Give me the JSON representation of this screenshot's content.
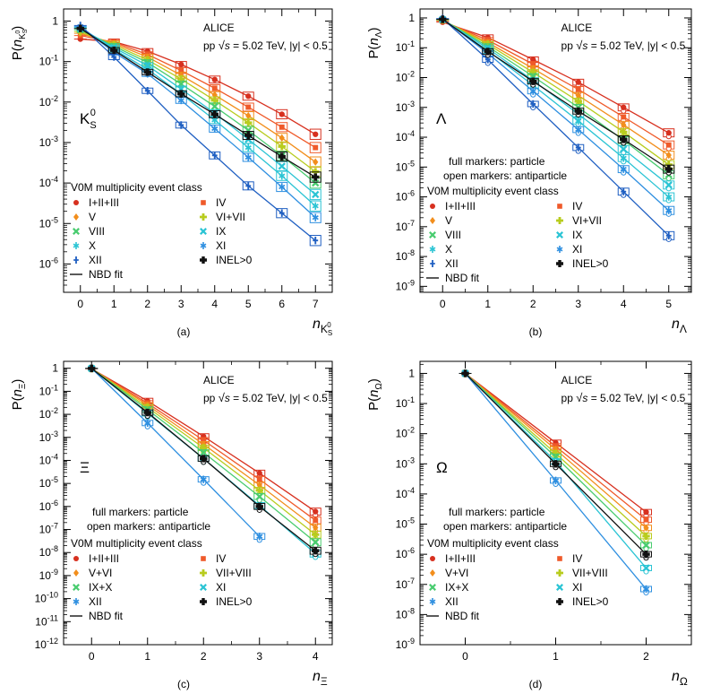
{
  "figure": {
    "colors": {
      "c1": "#d7301f",
      "c2": "#ef5a2a",
      "c3": "#f28e1c",
      "c4": "#b8cc1e",
      "c5": "#49cc6f",
      "c6": "#2bc4d4",
      "c7": "#2e8fe0",
      "c8": "#1f5fc2",
      "c9": "#111111"
    },
    "panels_order": [
      "a",
      "b",
      "c",
      "d"
    ]
  },
  "chart_data": [
    {
      "panel": "a",
      "type": "line",
      "panel_label": "(a)",
      "ylabel_main": "P(",
      "ylabel_sym": "n",
      "ylabel_sub": "K",
      "ylabel_subsub": "S",
      "ylabel_sup": "0",
      "ylabel_close": ")",
      "xlabel_sym": "n",
      "xlabel_sub": "K",
      "xlabel_subsub": "S",
      "xlabel_sup": "0",
      "species": "K",
      "species_sub": "S",
      "species_sup": "0",
      "experiment": "ALICE",
      "energy_prefix": "pp",
      "energy_text": "s = 5.02 TeV, |y| < 0.5",
      "marker_note_1": "",
      "marker_note_2": "",
      "legend_title": "V0M multiplicity event class",
      "xlim": [
        -0.5,
        7.5
      ],
      "x_ticks": [
        0,
        1,
        2,
        3,
        4,
        5,
        6,
        7
      ],
      "x_tick_labels": [
        "0",
        "1",
        "2",
        "3",
        "4",
        "5",
        "6",
        "7"
      ],
      "ylim_exp": [
        -6.7,
        0.3
      ],
      "y_tick_labels": [
        "10^-6",
        "10^-5",
        "10^-4",
        "10^-3",
        "10^-2",
        "10^-1",
        "1"
      ],
      "y_tick_exps": [
        -6,
        -5,
        -4,
        -3,
        -2,
        -1,
        0
      ],
      "fit_label": "NBD fit",
      "series": [
        {
          "name": "I+II+III",
          "marker": "circle",
          "color": "c1",
          "x": [
            0,
            1,
            2,
            3,
            4,
            5,
            6,
            7
          ],
          "y": [
            0.36,
            0.31,
            0.18,
            0.085,
            0.036,
            0.014,
            0.005,
            0.0016
          ]
        },
        {
          "name": "IV",
          "marker": "square",
          "color": "c2",
          "x": [
            0,
            1,
            2,
            3,
            4,
            5,
            6,
            7
          ],
          "y": [
            0.44,
            0.3,
            0.15,
            0.06,
            0.022,
            0.0075,
            0.0024,
            0.00075
          ]
        },
        {
          "name": "V",
          "marker": "diamond",
          "color": "c3",
          "x": [
            0,
            1,
            2,
            3,
            4,
            5,
            6,
            7
          ],
          "y": [
            0.5,
            0.28,
            0.13,
            0.046,
            0.015,
            0.0046,
            0.0013,
            0.00033
          ]
        },
        {
          "name": "VI+VII",
          "marker": "cross",
          "color": "c4",
          "x": [
            0,
            1,
            2,
            3,
            4,
            5,
            6,
            7
          ],
          "y": [
            0.55,
            0.26,
            0.11,
            0.037,
            0.011,
            0.0031,
            0.0008,
            0.00019
          ]
        },
        {
          "name": "VIII",
          "marker": "xcross",
          "color": "c5",
          "x": [
            0,
            1,
            2,
            3,
            4,
            5,
            6,
            7
          ],
          "y": [
            0.61,
            0.24,
            0.095,
            0.028,
            0.0078,
            0.002,
            0.00047,
            0.0001
          ]
        },
        {
          "name": "IX",
          "marker": "xcross",
          "color": "c6",
          "x": [
            0,
            1,
            2,
            3,
            4,
            5,
            6,
            7
          ],
          "y": [
            0.66,
            0.22,
            0.08,
            0.021,
            0.0053,
            0.0012,
            0.00026,
            5.2e-05
          ]
        },
        {
          "name": "X",
          "marker": "star",
          "color": "c6",
          "x": [
            0,
            1,
            2,
            3,
            4,
            5,
            6,
            7
          ],
          "y": [
            0.7,
            0.2,
            0.065,
            0.016,
            0.0036,
            0.00075,
            0.00015,
            2.7e-05
          ]
        },
        {
          "name": "XI",
          "marker": "star",
          "color": "c7",
          "x": [
            0,
            1,
            2,
            3,
            4,
            5,
            6,
            7
          ],
          "y": [
            0.74,
            0.17,
            0.05,
            0.011,
            0.0022,
            0.00043,
            8e-05,
            1.4e-05
          ]
        },
        {
          "name": "XII",
          "marker": "plus",
          "color": "c8",
          "x": [
            0,
            1,
            2,
            3,
            4,
            5,
            6,
            7
          ],
          "y": [
            0.78,
            0.13,
            0.019,
            0.0027,
            0.00048,
            8.5e-05,
            1.8e-05,
            3.8e-06
          ]
        },
        {
          "name": "INEL>0",
          "marker": "thickcross",
          "color": "c9",
          "x": [
            0,
            1,
            2,
            3,
            4,
            5,
            6,
            7
          ],
          "y": [
            0.66,
            0.19,
            0.055,
            0.016,
            0.005,
            0.0015,
            0.00045,
            0.00014
          ]
        }
      ]
    },
    {
      "panel": "b",
      "type": "line",
      "panel_label": "(b)",
      "ylabel_main": "P(",
      "ylabel_sym": "n",
      "ylabel_sub": "Λ",
      "ylabel_subsub": "",
      "ylabel_sup": "",
      "ylabel_close": ")",
      "xlabel_sym": "n",
      "xlabel_sub": "Λ",
      "xlabel_subsub": "",
      "xlabel_sup": "",
      "species": "Λ",
      "species_sub": "",
      "species_sup": "",
      "experiment": "ALICE",
      "energy_prefix": "pp",
      "energy_text": "s = 5.02 TeV, |y| < 0.5",
      "marker_note_1": "full markers: particle",
      "marker_note_2": "open markers: antiparticle",
      "legend_title": "V0M multiplicity event class",
      "xlim": [
        -0.5,
        5.5
      ],
      "x_ticks": [
        0,
        1,
        2,
        3,
        4,
        5
      ],
      "x_tick_labels": [
        "0",
        "1",
        "2",
        "3",
        "4",
        "5"
      ],
      "ylim_exp": [
        -9.2,
        0.3
      ],
      "y_tick_labels": [
        "10^-9",
        "10^-8",
        "10^-7",
        "10^-6",
        "10^-5",
        "10^-4",
        "10^-3",
        "10^-2",
        "10^-1",
        "1"
      ],
      "y_tick_exps": [
        -9,
        -8,
        -7,
        -6,
        -5,
        -4,
        -3,
        -2,
        -1,
        0
      ],
      "fit_label": "NBD fit",
      "series": [
        {
          "name": "I+II+III",
          "marker": "circle",
          "color": "c1",
          "x": [
            0,
            1,
            2,
            3,
            4,
            5
          ],
          "y": [
            0.72,
            0.22,
            0.04,
            0.007,
            0.001,
            0.00014
          ]
        },
        {
          "name": "IV",
          "marker": "square",
          "color": "c2",
          "x": [
            0,
            1,
            2,
            3,
            4,
            5
          ],
          "y": [
            0.78,
            0.18,
            0.028,
            0.004,
            0.00048,
            5.5e-05
          ]
        },
        {
          "name": "V",
          "marker": "diamond",
          "color": "c3",
          "x": [
            0,
            1,
            2,
            3,
            4,
            5
          ],
          "y": [
            0.82,
            0.15,
            0.02,
            0.0025,
            0.00026,
            2.5e-05
          ]
        },
        {
          "name": "VI+VII",
          "marker": "cross",
          "color": "c4",
          "x": [
            0,
            1,
            2,
            3,
            4,
            5
          ],
          "y": [
            0.85,
            0.13,
            0.015,
            0.0016,
            0.00015,
            1.2e-05
          ]
        },
        {
          "name": "VIII",
          "marker": "xcross",
          "color": "c5",
          "x": [
            0,
            1,
            2,
            3,
            4,
            5
          ],
          "y": [
            0.87,
            0.11,
            0.011,
            0.001,
            8e-05,
            5.5e-06
          ]
        },
        {
          "name": "IX",
          "marker": "xcross",
          "color": "c6",
          "x": [
            0,
            1,
            2,
            3,
            4,
            5
          ],
          "y": [
            0.89,
            0.095,
            0.008,
            0.0006,
            4e-05,
            2.5e-06
          ]
        },
        {
          "name": "X",
          "marker": "star",
          "color": "c6",
          "x": [
            0,
            1,
            2,
            3,
            4,
            5
          ],
          "y": [
            0.91,
            0.08,
            0.0055,
            0.00035,
            2e-05,
            1e-06
          ]
        },
        {
          "name": "XI",
          "marker": "star",
          "color": "c7",
          "x": [
            0,
            1,
            2,
            3,
            4,
            5
          ],
          "y": [
            0.93,
            0.065,
            0.0035,
            0.00018,
            8.5e-06,
            3.5e-07
          ]
        },
        {
          "name": "XII",
          "marker": "plus",
          "color": "c8",
          "x": [
            0,
            1,
            2,
            3,
            4,
            5
          ],
          "y": [
            0.95,
            0.04,
            0.0013,
            4.5e-05,
            1.5e-06,
            5e-08
          ]
        },
        {
          "name": "INEL>0",
          "marker": "thickcross",
          "color": "c9",
          "x": [
            0,
            1,
            2,
            3,
            4,
            5
          ],
          "y": [
            0.9,
            0.075,
            0.0075,
            0.00075,
            8.5e-05,
            8.5e-06
          ]
        }
      ]
    },
    {
      "panel": "c",
      "type": "line",
      "panel_label": "(c)",
      "ylabel_main": "P(",
      "ylabel_sym": "n",
      "ylabel_sub": "Ξ",
      "ylabel_subsub": "",
      "ylabel_sup": "",
      "ylabel_close": ")",
      "xlabel_sym": "n",
      "xlabel_sub": "Ξ",
      "xlabel_subsub": "",
      "xlabel_sup": "",
      "species": "Ξ",
      "species_sub": "",
      "species_sup": "",
      "experiment": "ALICE",
      "energy_prefix": "pp",
      "energy_text": "s = 5.02 TeV, |y| < 0.5",
      "marker_note_1": "full markers: particle",
      "marker_note_2": "open markers: antiparticle",
      "legend_title": "V0M multiplicity event class",
      "xlim": [
        -0.5,
        4.3
      ],
      "x_ticks": [
        0,
        1,
        2,
        3,
        4
      ],
      "x_tick_labels": [
        "0",
        "1",
        "2",
        "3",
        "4"
      ],
      "ylim_exp": [
        -12.0,
        0.3
      ],
      "y_tick_labels": [
        "10^-12",
        "10^-11",
        "10^-10",
        "10^-9",
        "10^-8",
        "10^-7",
        "10^-6",
        "10^-5",
        "10^-4",
        "10^-3",
        "10^-2",
        "10^-1",
        "1"
      ],
      "y_tick_exps": [
        -12,
        -11,
        -10,
        -9,
        -8,
        -7,
        -6,
        -5,
        -4,
        -3,
        -2,
        -1,
        0
      ],
      "fit_label": "NBD fit",
      "series": [
        {
          "name": "I+II+III",
          "marker": "circle",
          "color": "c1",
          "x": [
            0,
            1,
            2,
            3,
            4
          ],
          "y": [
            0.95,
            0.038,
            0.0011,
            2.8e-05,
            6e-07
          ]
        },
        {
          "name": "IV",
          "marker": "square",
          "color": "c2",
          "x": [
            0,
            1,
            2,
            3,
            4
          ],
          "y": [
            0.96,
            0.03,
            0.00075,
            1.5e-05,
            2.5e-07
          ]
        },
        {
          "name": "V+VI",
          "marker": "diamond",
          "color": "c3",
          "x": [
            0,
            1,
            2,
            3,
            4
          ],
          "y": [
            0.97,
            0.025,
            0.0005,
            8.5e-06,
            1.2e-07
          ]
        },
        {
          "name": "VII+VIII",
          "marker": "cross",
          "color": "c4",
          "x": [
            0,
            1,
            2,
            3,
            4
          ],
          "y": [
            0.975,
            0.02,
            0.00035,
            5e-06,
            6e-08
          ]
        },
        {
          "name": "IX+X",
          "marker": "xcross",
          "color": "c5",
          "x": [
            0,
            1,
            2,
            3,
            4
          ],
          "y": [
            0.98,
            0.016,
            0.00022,
            2.7e-06,
            2.8e-08
          ]
        },
        {
          "name": "XI",
          "marker": "xcross",
          "color": "c6",
          "x": [
            0,
            1,
            2,
            3,
            4
          ],
          "y": [
            0.985,
            0.011,
            0.00012,
            1.1e-06,
            9e-09
          ]
        },
        {
          "name": "XII",
          "marker": "star",
          "color": "c7",
          "x": [
            0,
            1,
            2,
            3
          ],
          "y": [
            0.99,
            0.0042,
            1.5e-05,
            5e-08
          ]
        },
        {
          "name": "INEL>0",
          "marker": "thickcross",
          "color": "c9",
          "x": [
            0,
            1,
            2,
            3,
            4
          ],
          "y": [
            0.985,
            0.012,
            0.00012,
            1e-06,
            1.2e-08
          ]
        }
      ]
    },
    {
      "panel": "d",
      "type": "line",
      "panel_label": "(d)",
      "ylabel_main": "P(",
      "ylabel_sym": "n",
      "ylabel_sub": "Ω",
      "ylabel_subsub": "",
      "ylabel_sup": "",
      "ylabel_close": ")",
      "xlabel_sym": "n",
      "xlabel_sub": "Ω",
      "xlabel_subsub": "",
      "xlabel_sup": "",
      "species": "Ω",
      "species_sub": "",
      "species_sup": "",
      "experiment": "ALICE",
      "energy_prefix": "pp",
      "energy_text": "s = 5.02 TeV, |y| < 0.5",
      "marker_note_1": "full markers: particle",
      "marker_note_2": "open markers: antiparticle",
      "legend_title": "V0M multiplicity event class",
      "xlim": [
        -0.5,
        2.5
      ],
      "x_ticks": [
        0,
        1,
        2
      ],
      "x_tick_labels": [
        "0",
        "1",
        "2"
      ],
      "ylim_exp": [
        -9.0,
        0.4
      ],
      "y_tick_labels": [
        "10^-9",
        "10^-8",
        "10^-7",
        "10^-6",
        "10^-5",
        "10^-4",
        "10^-3",
        "10^-2",
        "10^-1",
        "1"
      ],
      "y_tick_exps": [
        -9,
        -8,
        -7,
        -6,
        -5,
        -4,
        -3,
        -2,
        -1,
        0
      ],
      "fit_label": "NBD fit",
      "series": [
        {
          "name": "I+II+III",
          "marker": "circle",
          "color": "c1",
          "x": [
            0,
            1,
            2
          ],
          "y": [
            0.995,
            0.005,
            2.5e-05
          ]
        },
        {
          "name": "IV",
          "marker": "square",
          "color": "c2",
          "x": [
            0,
            1,
            2
          ],
          "y": [
            0.996,
            0.0038,
            1.4e-05
          ]
        },
        {
          "name": "V+VI",
          "marker": "diamond",
          "color": "c3",
          "x": [
            0,
            1,
            2
          ],
          "y": [
            0.997,
            0.003,
            7.5e-06
          ]
        },
        {
          "name": "VII+VIII",
          "marker": "cross",
          "color": "c4",
          "x": [
            0,
            1,
            2
          ],
          "y": [
            0.997,
            0.0022,
            4e-06
          ]
        },
        {
          "name": "IX+X",
          "marker": "xcross",
          "color": "c5",
          "x": [
            0,
            1,
            2
          ],
          "y": [
            0.998,
            0.0017,
            2e-06
          ]
        },
        {
          "name": "XI",
          "marker": "xcross",
          "color": "c6",
          "x": [
            0,
            1,
            2
          ],
          "y": [
            0.998,
            0.0012,
            3.5e-07
          ]
        },
        {
          "name": "XII",
          "marker": "star",
          "color": "c7",
          "x": [
            0,
            1,
            2
          ],
          "y": [
            0.999,
            0.00028,
            7e-08
          ]
        },
        {
          "name": "INEL>0",
          "marker": "thickcross",
          "color": "c9",
          "x": [
            0,
            1,
            2
          ],
          "y": [
            0.998,
            0.001,
            1e-06
          ]
        }
      ]
    }
  ]
}
